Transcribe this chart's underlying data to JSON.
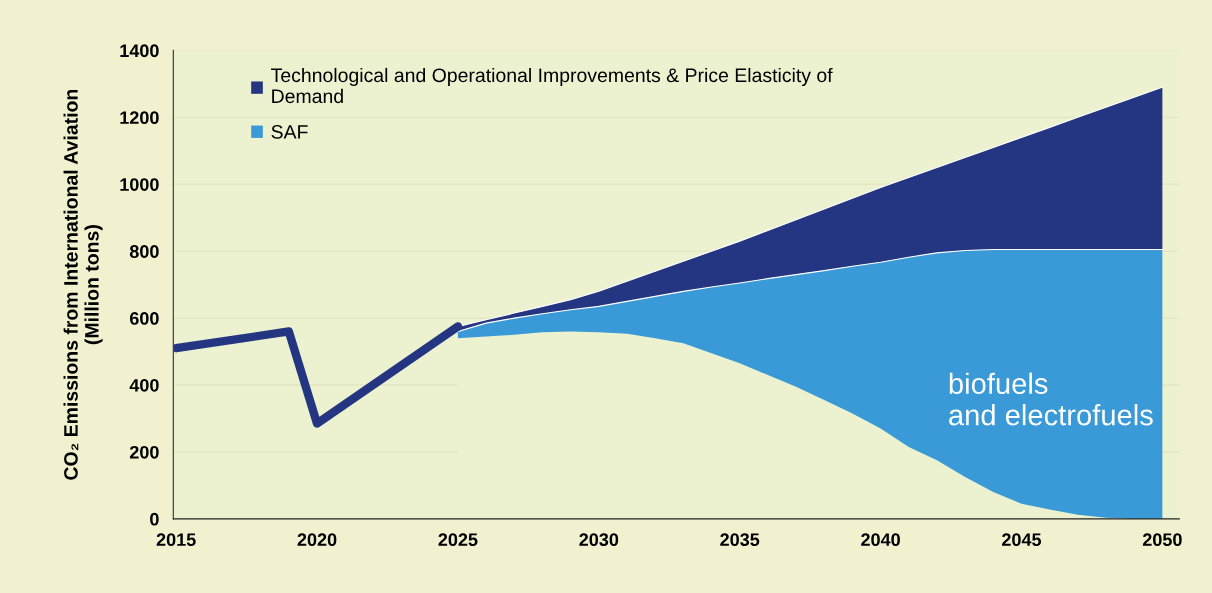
{
  "chart_data": {
    "type": "area",
    "stacked": true,
    "ylabel": "CO₂ Emissions from International Aviation\n(Million tons)",
    "xlim": [
      2014.9,
      2050.6
    ],
    "ylim": [
      0,
      1400
    ],
    "xticks": [
      2015,
      2020,
      2025,
      2030,
      2035,
      2040,
      2045,
      2050
    ],
    "yticks": [
      0,
      200,
      400,
      600,
      800,
      1000,
      1200,
      1400
    ],
    "grid": "y",
    "legend": "top left",
    "marker": "none",
    "line_style": "solid",
    "series": [
      {
        "type": "line",
        "color": "#243582",
        "x": [
          2015,
          2019,
          2020,
          2025
        ],
        "values": [
          510,
          560,
          285,
          575
        ]
      },
      {
        "color": "#ecf2cf",
        "x": [
          2025,
          2026,
          2027,
          2028,
          2029,
          2030,
          2031,
          2032,
          2033,
          2034,
          2035,
          2036,
          2037,
          2038,
          2039,
          2040,
          2041,
          2042,
          2043,
          2044,
          2045,
          2046,
          2047,
          2048,
          2049,
          2050
        ],
        "values": [
          540,
          545,
          550,
          558,
          560,
          558,
          553,
          540,
          525,
          495,
          465,
          430,
          395,
          355,
          315,
          270,
          215,
          175,
          125,
          80,
          45,
          28,
          12,
          3,
          0,
          0
        ]
      },
      {
        "name": "SAF",
        "color": "#3a9ad8",
        "x": [
          2025,
          2026,
          2027,
          2028,
          2029,
          2030,
          2031,
          2032,
          2033,
          2034,
          2035,
          2036,
          2037,
          2038,
          2039,
          2040,
          2041,
          2042,
          2043,
          2044,
          2045,
          2046,
          2047,
          2048,
          2049,
          2050
        ],
        "values": [
          20,
          40,
          50,
          55,
          65,
          77,
          97,
          125,
          155,
          198,
          240,
          288,
          335,
          387,
          440,
          497,
          567,
          620,
          677,
          725,
          760,
          777,
          793,
          802,
          805,
          805
        ]
      },
      {
        "name": "Technological and Operational Improvements & Price Elasticity of Demand",
        "color": "#243582",
        "x": [
          2025,
          2026,
          2027,
          2028,
          2029,
          2030,
          2031,
          2032,
          2033,
          2034,
          2035,
          2036,
          2037,
          2038,
          2039,
          2040,
          2041,
          2042,
          2043,
          2044,
          2045,
          2046,
          2047,
          2048,
          2049,
          2050
        ],
        "values": [
          15,
          10,
          15,
          22,
          30,
          45,
          60,
          75,
          90,
          107,
          125,
          144,
          164,
          184,
          203,
          223,
          238,
          255,
          278,
          305,
          335,
          365,
          395,
          425,
          455,
          485
        ]
      }
    ],
    "annotations": [
      "biofuels\nand electrofuels"
    ]
  }
}
